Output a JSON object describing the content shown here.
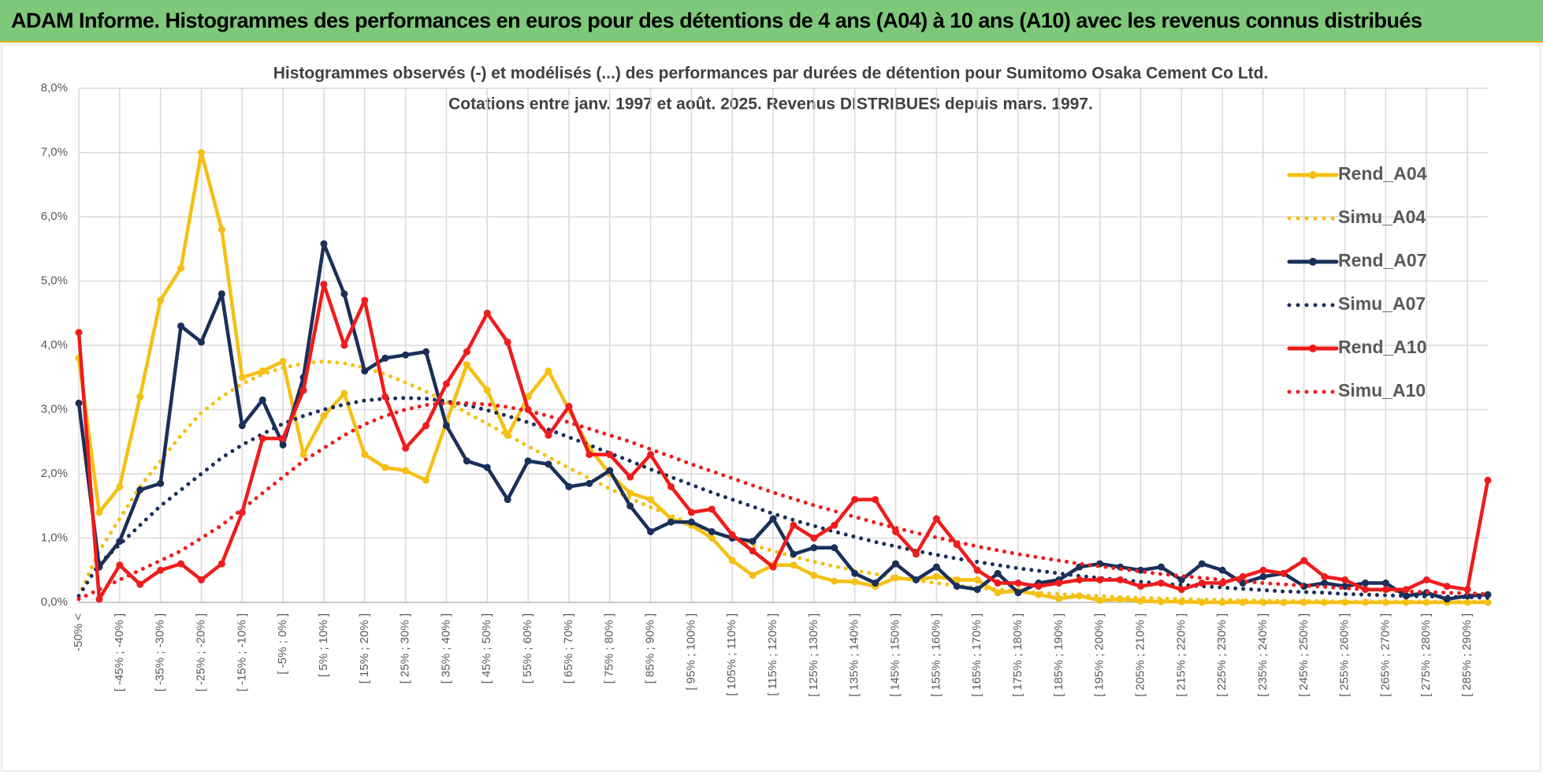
{
  "header": {
    "title": "ADAM Informe. Histogrammes des performances en euros pour des détentions de 4 ans (A04) à 10 ans (A10) avec les revenus connus distribués"
  },
  "chart_data": {
    "type": "line",
    "title": "Histogrammes observés (-) et modélisés (...) des performances par durées de détention pour Sumitomo Osaka Cement Co Ltd.",
    "subtitle": "Cotations entre janv. 1997 et août. 2025. Revenus DISTRIBUES depuis mars. 1997.",
    "categories": [
      "-50% <",
      null,
      "[ -45% ; -40% ]",
      null,
      "[ -35% ; -30% ]",
      null,
      "[ -25% ; -20% ]",
      null,
      "[ -15% ; -10% ]",
      null,
      "[ -5% ; 0% ]",
      null,
      "[ 5% ; 10% ]",
      null,
      "[ 15% ; 20% ]",
      null,
      "[ 25% ; 30% ]",
      null,
      "[ 35% ; 40% ]",
      null,
      "[ 45% ; 50% ]",
      null,
      "[ 55% ; 60% ]",
      null,
      "[ 65% ; 70% ]",
      null,
      "[ 75% ; 80% ]",
      null,
      "[ 85% ; 90% ]",
      null,
      "[ 95% ; 100% ]",
      null,
      "[ 105% ; 110% ]",
      null,
      "[ 115% ; 120% ]",
      null,
      "[ 125% ; 130% ]",
      null,
      "[ 135% ; 140% ]",
      null,
      "[ 145% ; 150% ]",
      null,
      "[ 155% ; 160% ]",
      null,
      "[ 165% ; 170% ]",
      null,
      "[ 175% ; 180% ]",
      null,
      "[ 185% ; 190% ]",
      null,
      "[ 195% ; 200% ]",
      null,
      "[ 205% ; 210% ]",
      null,
      "[ 215% ; 220% ]",
      null,
      "[ 225% ; 230% ]",
      null,
      "[ 235% ; 240% ]",
      null,
      "[ 245% ; 250% ]",
      null,
      "[ 255% ; 260% ]",
      null,
      "[ 265% ; 270% ]",
      null,
      "[ 275% ; 280% ]",
      null,
      "[ 285% ; 290% ]",
      null
    ],
    "series": [
      {
        "name": "Rend_A04",
        "color": "#f5c013",
        "line_style": "solid",
        "markers": true,
        "values": [
          3.8,
          1.4,
          1.8,
          3.2,
          4.7,
          5.2,
          7.0,
          5.8,
          3.5,
          3.6,
          3.75,
          2.3,
          2.9,
          3.25,
          2.3,
          2.1,
          2.05,
          1.9,
          2.8,
          3.7,
          3.3,
          2.6,
          3.2,
          3.6,
          3.0,
          2.4,
          2.0,
          1.7,
          1.6,
          1.3,
          1.2,
          1.0,
          0.65,
          0.42,
          0.58,
          0.58,
          0.42,
          0.33,
          0.32,
          0.25,
          0.38,
          0.35,
          0.4,
          0.35,
          0.35,
          0.15,
          0.18,
          0.12,
          0.06,
          0.1,
          0.03,
          0.05,
          0.02,
          0.01,
          0.01,
          0.0,
          0.0,
          0.0,
          0.0,
          0.0,
          0.0,
          0.0,
          0.0,
          0.0,
          0.0,
          0.0,
          0.0,
          0.0,
          0.0,
          0.0
        ]
      },
      {
        "name": "Simu_A04",
        "color": "#f5c013",
        "line_style": "dotted",
        "markers": false,
        "values": [
          0.1,
          0.8,
          1.3,
          1.8,
          2.2,
          2.6,
          2.95,
          3.2,
          3.4,
          3.55,
          3.65,
          3.72,
          3.75,
          3.72,
          3.65,
          3.55,
          3.42,
          3.28,
          3.12,
          2.95,
          2.78,
          2.6,
          2.43,
          2.26,
          2.09,
          1.93,
          1.77,
          1.62,
          1.48,
          1.35,
          1.22,
          1.1,
          0.99,
          0.89,
          0.8,
          0.71,
          0.63,
          0.56,
          0.5,
          0.44,
          0.39,
          0.34,
          0.3,
          0.26,
          0.23,
          0.2,
          0.17,
          0.15,
          0.13,
          0.11,
          0.1,
          0.08,
          0.07,
          0.06,
          0.05,
          0.04,
          0.04,
          0.03,
          0.03,
          0.02,
          0.02,
          0.02,
          0.01,
          0.01,
          0.01,
          0.01,
          0.01,
          0.01,
          0.01,
          0.01
        ]
      },
      {
        "name": "Rend_A07",
        "color": "#1a2f5a",
        "line_style": "solid",
        "markers": true,
        "values": [
          3.1,
          0.55,
          0.95,
          1.75,
          1.85,
          4.3,
          4.05,
          4.8,
          2.75,
          3.15,
          2.45,
          3.5,
          5.58,
          4.8,
          3.6,
          3.8,
          3.85,
          3.9,
          2.75,
          2.2,
          2.1,
          1.6,
          2.2,
          2.15,
          1.8,
          1.85,
          2.05,
          1.5,
          1.1,
          1.25,
          1.25,
          1.1,
          1.0,
          0.95,
          1.3,
          0.75,
          0.85,
          0.85,
          0.45,
          0.3,
          0.6,
          0.35,
          0.55,
          0.25,
          0.2,
          0.45,
          0.15,
          0.3,
          0.35,
          0.55,
          0.6,
          0.55,
          0.5,
          0.55,
          0.35,
          0.6,
          0.5,
          0.3,
          0.4,
          0.45,
          0.25,
          0.3,
          0.25,
          0.3,
          0.3,
          0.1,
          0.15,
          0.05,
          0.1,
          0.12
        ]
      },
      {
        "name": "Simu_A07",
        "color": "#1a2f5a",
        "line_style": "dotted",
        "markers": false,
        "values": [
          0.1,
          0.6,
          0.9,
          1.2,
          1.5,
          1.75,
          2.0,
          2.25,
          2.45,
          2.62,
          2.78,
          2.9,
          3.0,
          3.08,
          3.14,
          3.17,
          3.18,
          3.17,
          3.13,
          3.07,
          2.99,
          2.9,
          2.8,
          2.69,
          2.57,
          2.45,
          2.32,
          2.2,
          2.07,
          1.95,
          1.83,
          1.71,
          1.6,
          1.49,
          1.38,
          1.28,
          1.19,
          1.1,
          1.02,
          0.94,
          0.87,
          0.8,
          0.74,
          0.68,
          0.63,
          0.58,
          0.53,
          0.49,
          0.45,
          0.41,
          0.38,
          0.35,
          0.32,
          0.29,
          0.27,
          0.25,
          0.23,
          0.21,
          0.19,
          0.17,
          0.16,
          0.15,
          0.13,
          0.12,
          0.11,
          0.1,
          0.09,
          0.09,
          0.08,
          0.07
        ]
      },
      {
        "name": "Rend_A10",
        "color": "#ee1c1c",
        "line_style": "solid",
        "markers": true,
        "values": [
          4.2,
          0.05,
          0.58,
          0.28,
          0.5,
          0.6,
          0.35,
          0.6,
          1.4,
          2.55,
          2.55,
          3.3,
          4.95,
          4.0,
          4.7,
          3.2,
          2.4,
          2.75,
          3.4,
          3.9,
          4.5,
          4.05,
          3.0,
          2.6,
          3.05,
          2.3,
          2.3,
          1.95,
          2.3,
          1.8,
          1.4,
          1.45,
          1.05,
          0.8,
          0.55,
          1.2,
          1.0,
          1.2,
          1.6,
          1.6,
          1.1,
          0.75,
          1.3,
          0.9,
          0.5,
          0.3,
          0.3,
          0.25,
          0.3,
          0.35,
          0.35,
          0.35,
          0.25,
          0.3,
          0.2,
          0.3,
          0.3,
          0.4,
          0.5,
          0.45,
          0.65,
          0.4,
          0.35,
          0.2,
          0.2,
          0.2,
          0.35,
          0.25,
          0.2,
          1.9
        ]
      },
      {
        "name": "Simu_A10",
        "color": "#ee1c1c",
        "line_style": "dotted",
        "markers": false,
        "values": [
          0.05,
          0.2,
          0.35,
          0.5,
          0.65,
          0.8,
          1.0,
          1.2,
          1.45,
          1.7,
          1.95,
          2.2,
          2.4,
          2.6,
          2.77,
          2.9,
          3.0,
          3.07,
          3.1,
          3.1,
          3.08,
          3.04,
          2.98,
          2.9,
          2.8,
          2.7,
          2.6,
          2.5,
          2.38,
          2.27,
          2.15,
          2.04,
          1.93,
          1.82,
          1.71,
          1.61,
          1.51,
          1.42,
          1.33,
          1.24,
          1.16,
          1.08,
          1.01,
          0.94,
          0.87,
          0.81,
          0.75,
          0.7,
          0.65,
          0.6,
          0.56,
          0.52,
          0.48,
          0.44,
          0.41,
          0.38,
          0.35,
          0.33,
          0.3,
          0.28,
          0.26,
          0.24,
          0.22,
          0.2,
          0.19,
          0.17,
          0.16,
          0.15,
          0.14,
          0.13
        ]
      }
    ],
    "ylim": [
      0,
      8
    ],
    "yticks": [
      {
        "value": 0,
        "label": "0,0%"
      },
      {
        "value": 1,
        "label": "1,0%"
      },
      {
        "value": 2,
        "label": "2,0%"
      },
      {
        "value": 3,
        "label": "3,0%"
      },
      {
        "value": 4,
        "label": "4,0%"
      },
      {
        "value": 5,
        "label": "5,0%"
      },
      {
        "value": 6,
        "label": "6,0%"
      },
      {
        "value": 7,
        "label": "7,0%"
      },
      {
        "value": 8,
        "label": "8,0%"
      }
    ],
    "grid": true,
    "legend": "right"
  }
}
